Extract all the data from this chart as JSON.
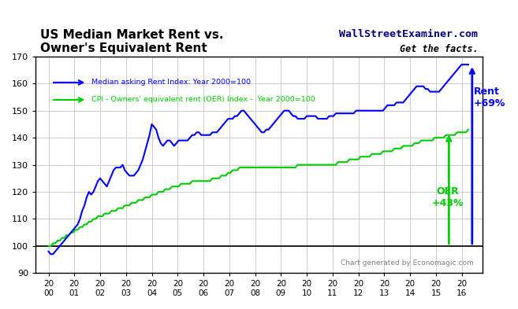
{
  "title_line1": "US Median Market Rent vs.",
  "title_line2": "Owner's Equivalent Rent",
  "watermark_line1": "WallStreetExaminer.com",
  "watermark_line2": "Get the facts.",
  "footer": "Chart generated by Economagic.com",
  "ylabel": "",
  "ylim": [
    90,
    170
  ],
  "yticks": [
    90,
    100,
    110,
    120,
    130,
    140,
    150,
    160,
    170
  ],
  "legend_rent": "Median asking Rent Index: Year 2000=100",
  "legend_oer": "CPI - Owners' equivalent rent (OER) Index -  Year 2000=100",
  "rent_color": "#0000FF",
  "oer_color": "#00CC00",
  "annotation_rent_label": "Rent\n+69%",
  "annotation_oer_label": "OER\n+43%",
  "rent_data": [
    98,
    97,
    97,
    98,
    99,
    100,
    101,
    102,
    103,
    104,
    105,
    106,
    107,
    108,
    110,
    113,
    115,
    118,
    120,
    119,
    120,
    122,
    124,
    125,
    124,
    123,
    122,
    124,
    126,
    128,
    129,
    129,
    129,
    130,
    128,
    127,
    126,
    126,
    126,
    127,
    128,
    130,
    132,
    135,
    138,
    141,
    145,
    144,
    143,
    140,
    138,
    137,
    138,
    139,
    139,
    138,
    137,
    138,
    139,
    139,
    139,
    139,
    139,
    140,
    141,
    141,
    142,
    142,
    141,
    141,
    141,
    141,
    141,
    142,
    142,
    142,
    143,
    144,
    145,
    146,
    147,
    147,
    147,
    148,
    148,
    149,
    150,
    150,
    149,
    148,
    147,
    146,
    145,
    144,
    143,
    142,
    142,
    143,
    143,
    144,
    145,
    146,
    147,
    148,
    149,
    150,
    150,
    150,
    149,
    148,
    148,
    147,
    147,
    147,
    147,
    148,
    148,
    148,
    148,
    148,
    147,
    147,
    147,
    147,
    147,
    148,
    148,
    148,
    149,
    149,
    149,
    149,
    149,
    149,
    149,
    149,
    149,
    150,
    150,
    150,
    150,
    150,
    150,
    150,
    150,
    150,
    150,
    150,
    150,
    150,
    151,
    152,
    152,
    152,
    152,
    153,
    153,
    153,
    153,
    154,
    155,
    156,
    157,
    158,
    159,
    159,
    159,
    159,
    158,
    158,
    157,
    157,
    157,
    157,
    157,
    158,
    159,
    160,
    161,
    162,
    163,
    164,
    165,
    166,
    167,
    167,
    167,
    167
  ],
  "oer_data": [
    100,
    100,
    101,
    101,
    102,
    102,
    103,
    103,
    104,
    104,
    105,
    105,
    106,
    106,
    107,
    107,
    108,
    108,
    109,
    109,
    110,
    110,
    111,
    111,
    111,
    112,
    112,
    112,
    113,
    113,
    113,
    114,
    114,
    114,
    115,
    115,
    115,
    116,
    116,
    116,
    117,
    117,
    117,
    118,
    118,
    118,
    119,
    119,
    119,
    120,
    120,
    120,
    121,
    121,
    121,
    122,
    122,
    122,
    122,
    123,
    123,
    123,
    123,
    123,
    124,
    124,
    124,
    124,
    124,
    124,
    124,
    124,
    124,
    125,
    125,
    125,
    125,
    126,
    126,
    126,
    127,
    127,
    128,
    128,
    128,
    129,
    129,
    129,
    129,
    129,
    129,
    129,
    129,
    129,
    129,
    129,
    129,
    129,
    129,
    129,
    129,
    129,
    129,
    129,
    129,
    129,
    129,
    129,
    129,
    129,
    129,
    130,
    130,
    130,
    130,
    130,
    130,
    130,
    130,
    130,
    130,
    130,
    130,
    130,
    130,
    130,
    130,
    130,
    130,
    131,
    131,
    131,
    131,
    131,
    132,
    132,
    132,
    132,
    132,
    133,
    133,
    133,
    133,
    133,
    134,
    134,
    134,
    134,
    134,
    135,
    135,
    135,
    135,
    135,
    136,
    136,
    136,
    136,
    137,
    137,
    137,
    137,
    137,
    138,
    138,
    138,
    139,
    139,
    139,
    139,
    139,
    139,
    140,
    140,
    140,
    140,
    140,
    141,
    141,
    141,
    141,
    141,
    142,
    142,
    142,
    142,
    142,
    143
  ],
  "background_color": "#FFFFFF",
  "grid_color": "#CCCCCC"
}
